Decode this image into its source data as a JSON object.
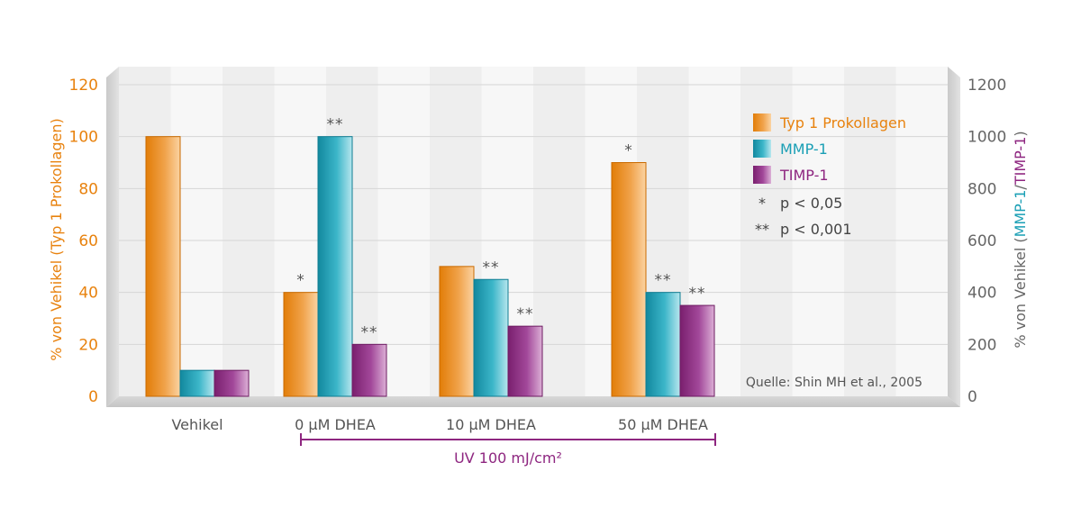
{
  "chart_data": {
    "type": "bar",
    "categories": [
      "Vehikel",
      "0 µM DHEA",
      "10 µM DHEA",
      "50 µM DHEA"
    ],
    "series": [
      {
        "name": "Typ 1 Prokollagen",
        "axis": "left",
        "values": [
          100,
          40,
          50,
          90
        ],
        "significance": [
          "",
          "*",
          "",
          "*"
        ]
      },
      {
        "name": "MMP-1",
        "axis": "right",
        "values": [
          100,
          1000,
          450,
          400
        ],
        "significance": [
          "",
          "**",
          "**",
          "**"
        ]
      },
      {
        "name": "TIMP-1",
        "axis": "right",
        "values": [
          100,
          200,
          270,
          350
        ],
        "significance": [
          "",
          "**",
          "**",
          "**"
        ]
      }
    ],
    "y_left": {
      "min": 0,
      "max": 120,
      "ticks": [
        "0",
        "20",
        "40",
        "60",
        "80",
        "100",
        "120"
      ]
    },
    "y_right": {
      "min": 0,
      "max": 1200,
      "ticks": [
        "0",
        "200",
        "400",
        "600",
        "800",
        "1000",
        "1200"
      ]
    },
    "ylabel_left": "% von Vehikel (Typ 1 Prokollagen)",
    "ylabel_right_prefix": "% von Vehikel (",
    "ylabel_right_mmp": "MMP-1",
    "ylabel_right_sep": "/",
    "ylabel_right_timp": "TIMP-1",
    "ylabel_right_suffix": ")",
    "bracket_label": "UV 100 mJ/cm²",
    "legend_placement": "top-right",
    "significance_legend": [
      {
        "symbol": "*",
        "text": "p < 0,05"
      },
      {
        "symbol": "**",
        "text": "p < 0,001"
      }
    ],
    "source": "Quelle: Shin MH et al., 2005",
    "grid": true
  },
  "colors": {
    "typ1": "#e8820e",
    "mmp1": "#1a9fb5",
    "timp1": "#8e2680",
    "bracket": "#8e2680",
    "left_axis_text": "#e8820e",
    "right_axis_text": "#666666"
  }
}
